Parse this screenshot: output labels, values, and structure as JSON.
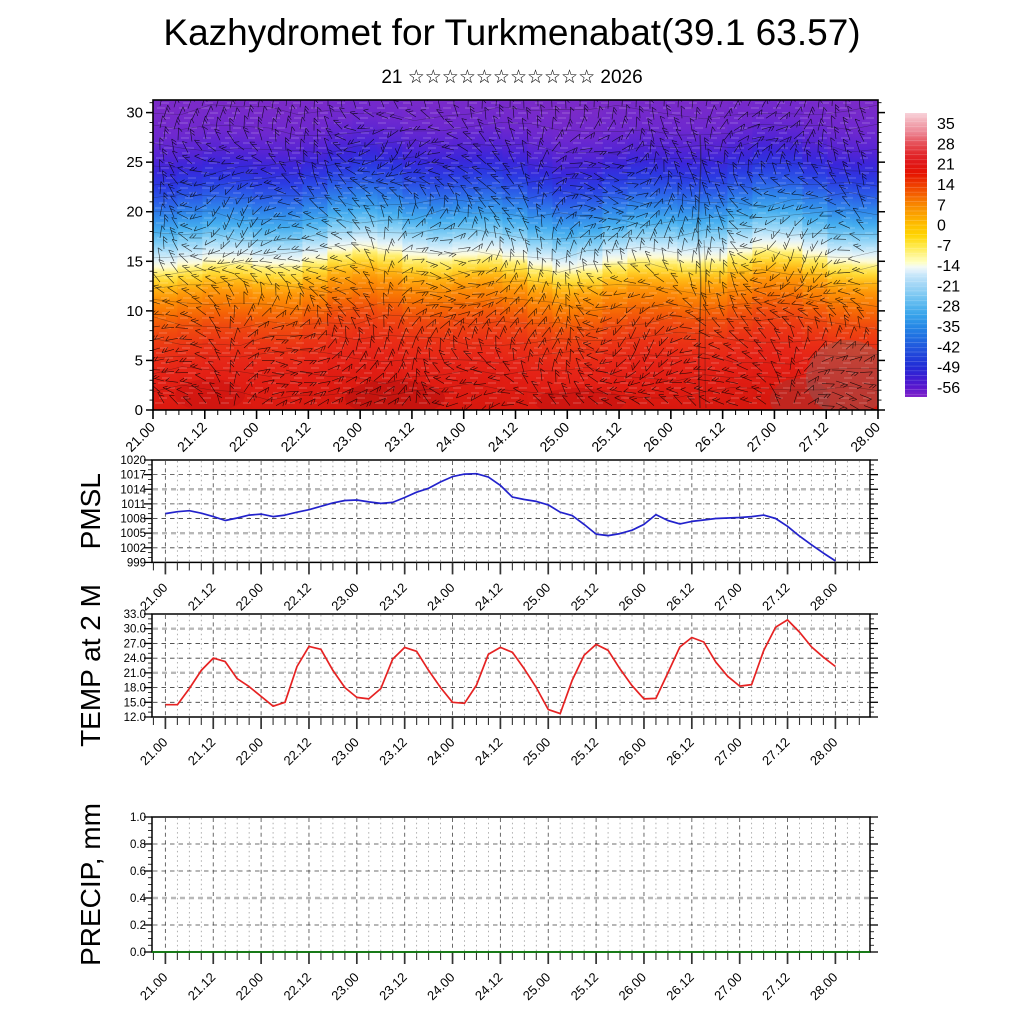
{
  "title": "Kazhydromet for Turkmenabat(39.1 63.57)",
  "subtitle": "21 ☆☆☆☆☆☆☆☆☆☆☆ 2026",
  "colors": {
    "pmsl_line": "#2222cc",
    "temp_line": "#e62222",
    "precip_line": "#0a7a0a",
    "grid_dark": "#3c3c3c",
    "grid_light": "#b8b8b8",
    "grid_vert_minor": "#9a9a9a",
    "grid_vert_major": "#5a5a5a",
    "axis": "#000000"
  },
  "chart_data": [
    {
      "id": "upper-air",
      "type": "heatmap",
      "description": "time-height temperature cross-section with wind barbs overlay",
      "x_tick_labels": [
        "21.00",
        "21.12",
        "22.00",
        "22.12",
        "23.00",
        "23.12",
        "24.00",
        "24.12",
        "25.00",
        "25.12",
        "26.00",
        "26.12",
        "27.00",
        "27.12",
        "28.00"
      ],
      "y_ticks": [
        0,
        5,
        10,
        15,
        20,
        25,
        30
      ],
      "ylim": [
        0,
        31.27
      ],
      "overlay": "wind-barbs",
      "colorbar_ticks": [
        35,
        28,
        21,
        14,
        7,
        0,
        -7,
        -14,
        -21,
        -28,
        -35,
        -42,
        -49,
        -56
      ],
      "colorbar_stops": [
        {
          "v": 38.5,
          "c": "#f8d2da"
        },
        {
          "v": 35,
          "c": "#f2a8b2"
        },
        {
          "v": 31.5,
          "c": "#ec8290"
        },
        {
          "v": 28,
          "c": "#e65058"
        },
        {
          "v": 24.5,
          "c": "#e22a2e"
        },
        {
          "v": 21,
          "c": "#e01616"
        },
        {
          "v": 17.5,
          "c": "#e61400"
        },
        {
          "v": 14,
          "c": "#ee3a00"
        },
        {
          "v": 10.5,
          "c": "#f45e00"
        },
        {
          "v": 7,
          "c": "#f88600"
        },
        {
          "v": 3.5,
          "c": "#fba200"
        },
        {
          "v": 0,
          "c": "#febe00"
        },
        {
          "v": -3.5,
          "c": "#ffd300"
        },
        {
          "v": -7,
          "c": "#ffe73e"
        },
        {
          "v": -10.5,
          "c": "#fff58e"
        },
        {
          "v": -13,
          "c": "#ffffc0"
        },
        {
          "v": -14.5,
          "c": "#f4fbf2"
        },
        {
          "v": -16,
          "c": "#dff0fb"
        },
        {
          "v": -17.5,
          "c": "#c6e6fa"
        },
        {
          "v": -21,
          "c": "#9fd5f6"
        },
        {
          "v": -24.5,
          "c": "#7cc8f2"
        },
        {
          "v": -28,
          "c": "#55b5ee"
        },
        {
          "v": -31.5,
          "c": "#36a1ea"
        },
        {
          "v": -35,
          "c": "#2789e6"
        },
        {
          "v": -38.5,
          "c": "#2071e2"
        },
        {
          "v": -42,
          "c": "#2159de"
        },
        {
          "v": -45.5,
          "c": "#2142da"
        },
        {
          "v": -49,
          "c": "#212cd6"
        },
        {
          "v": -52.5,
          "c": "#3b1ed2"
        },
        {
          "v": -56,
          "c": "#5816ce"
        },
        {
          "v": -59.5,
          "c": "#8224ca"
        }
      ],
      "fill_stops": [
        {
          "alt": 31.27,
          "c": "#7a2ac8"
        },
        {
          "alt": 28.5,
          "c": "#6e28cf"
        },
        {
          "alt": 26.5,
          "c": "#5524d4"
        },
        {
          "alt": 25,
          "c": "#3a26da"
        },
        {
          "alt": 23.5,
          "c": "#2b3ae2"
        },
        {
          "alt": 22,
          "c": "#2b5ce8"
        },
        {
          "alt": 20.5,
          "c": "#2f86ea"
        },
        {
          "alt": 19,
          "c": "#44adef"
        },
        {
          "alt": 17.8,
          "c": "#7ccbf4"
        },
        {
          "alt": 16.8,
          "c": "#b5e2f9"
        },
        {
          "alt": 16,
          "c": "#e4f3f8"
        },
        {
          "alt": 15.4,
          "c": "#fdfbd8"
        },
        {
          "alt": 14.8,
          "c": "#ffef70"
        },
        {
          "alt": 14,
          "c": "#ffd832"
        },
        {
          "alt": 13.2,
          "c": "#ffb614"
        },
        {
          "alt": 12.2,
          "c": "#fd9508"
        },
        {
          "alt": 11,
          "c": "#f97a04"
        },
        {
          "alt": 10,
          "c": "#f56206"
        },
        {
          "alt": 8.8,
          "c": "#f04a0e"
        },
        {
          "alt": 7,
          "c": "#eb3314"
        },
        {
          "alt": 5,
          "c": "#e62517"
        },
        {
          "alt": 3,
          "c": "#e11d13"
        },
        {
          "alt": 1.2,
          "c": "#dc1a10"
        },
        {
          "alt": 0,
          "c": "#d7180e"
        }
      ]
    },
    {
      "id": "pmsl",
      "type": "line",
      "ylabel": "PMSL",
      "x_start_day": 21,
      "x_step_hours": 3,
      "ylim": [
        999,
        1020
      ],
      "y_ticks": [
        1020,
        1017,
        1014,
        1011,
        1008,
        1005,
        1002,
        999
      ],
      "y_tick_labels": [
        "1020",
        "1017",
        "1014",
        "1011",
        "1008",
        "1005",
        "1002",
        "999"
      ],
      "highlight_y": [
        1014,
        1005
      ],
      "minor_per_major": 2,
      "line_color": "#2222cc",
      "values": [
        1009.0,
        1009.4,
        1009.6,
        1009.1,
        1008.4,
        1007.6,
        1008.1,
        1008.7,
        1008.9,
        1008.4,
        1008.7,
        1009.3,
        1009.8,
        1010.5,
        1011.2,
        1011.7,
        1011.8,
        1011.4,
        1011.1,
        1011.3,
        1012.3,
        1013.4,
        1014.2,
        1015.5,
        1016.6,
        1017.1,
        1017.2,
        1016.5,
        1014.8,
        1012.4,
        1011.9,
        1011.5,
        1010.8,
        1009.3,
        1008.6,
        1006.8,
        1004.8,
        1004.5,
        1004.9,
        1005.6,
        1006.8,
        1008.8,
        1007.6,
        1006.9,
        1007.4,
        1007.7,
        1008.0,
        1008.1,
        1008.2,
        1008.4,
        1008.7,
        1008.0,
        1006.4,
        1004.4,
        1002.6,
        1000.9,
        999.3
      ]
    },
    {
      "id": "temp2m",
      "type": "line",
      "ylabel": "TEMP at 2 M",
      "x_start_day": 21,
      "x_step_hours": 3,
      "ylim": [
        12.0,
        33.0
      ],
      "y_ticks": [
        33.0,
        30.0,
        27.0,
        24.0,
        21.0,
        18.0,
        15.0,
        12.0
      ],
      "y_tick_labels": [
        "33.0",
        "30.0",
        "27.0",
        "24.0",
        "21.0",
        "18.0",
        "15.0",
        "12.0"
      ],
      "highlight_y": [
        30.0,
        21.0
      ],
      "minor_per_major": 2,
      "line_color": "#e62222",
      "values": [
        14.5,
        14.5,
        17.8,
        21.5,
        24.0,
        23.3,
        19.8,
        18.2,
        16.2,
        14.2,
        15.0,
        22.3,
        26.4,
        25.8,
        21.5,
        18.0,
        16.0,
        15.7,
        17.8,
        23.8,
        26.2,
        25.4,
        21.5,
        18.0,
        15.0,
        14.8,
        18.5,
        24.8,
        26.2,
        25.2,
        21.8,
        18.0,
        13.5,
        12.7,
        19.5,
        24.6,
        26.8,
        25.6,
        21.8,
        18.4,
        15.7,
        15.8,
        21.0,
        26.3,
        28.2,
        27.3,
        23.2,
        20.3,
        18.3,
        18.6,
        25.5,
        30.3,
        31.8,
        29.3,
        26.3,
        24.2,
        22.3
      ]
    },
    {
      "id": "precip",
      "type": "line",
      "ylabel": "PRECIP, mm",
      "x_start_day": 21,
      "x_step_hours": 3,
      "ylim": [
        0.0,
        1.0
      ],
      "y_ticks": [
        1.0,
        0.8,
        0.6,
        0.4,
        0.2,
        0.0
      ],
      "y_tick_labels": [
        "1.0",
        "0.8",
        "0.6",
        "0.4",
        "0.2",
        "0.0"
      ],
      "highlight_y": [
        0.4
      ],
      "minor_per_major": 3,
      "line_color": "#0a7a0a",
      "values_constant": 0.0,
      "n_points": 57
    }
  ]
}
